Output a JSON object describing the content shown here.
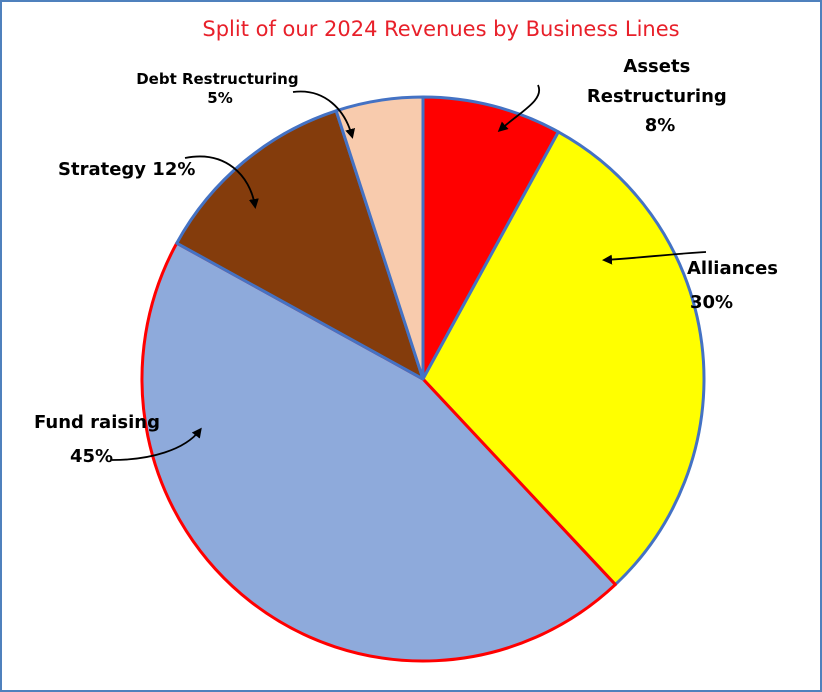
{
  "chart_data": {
    "type": "pie",
    "title": "Split of our 2024 Revenues by Business Lines",
    "slices": [
      {
        "label_lines": [
          "Assets",
          "Restructuring",
          "8%"
        ],
        "value": 8,
        "color": "#ff0000"
      },
      {
        "label_lines": [
          "Alliances",
          "30%"
        ],
        "value": 30,
        "color": "#ffff00"
      },
      {
        "label_lines": [
          "Fund raising",
          "45%"
        ],
        "value": 45,
        "color": "#8eaadb"
      },
      {
        "label_lines": [
          "Strategy 12%"
        ],
        "value": 12,
        "color": "#843c0c"
      },
      {
        "label_lines": [
          "Debt Restructuring",
          "5%"
        ],
        "value": 5,
        "color": "#f8cbad"
      }
    ]
  }
}
